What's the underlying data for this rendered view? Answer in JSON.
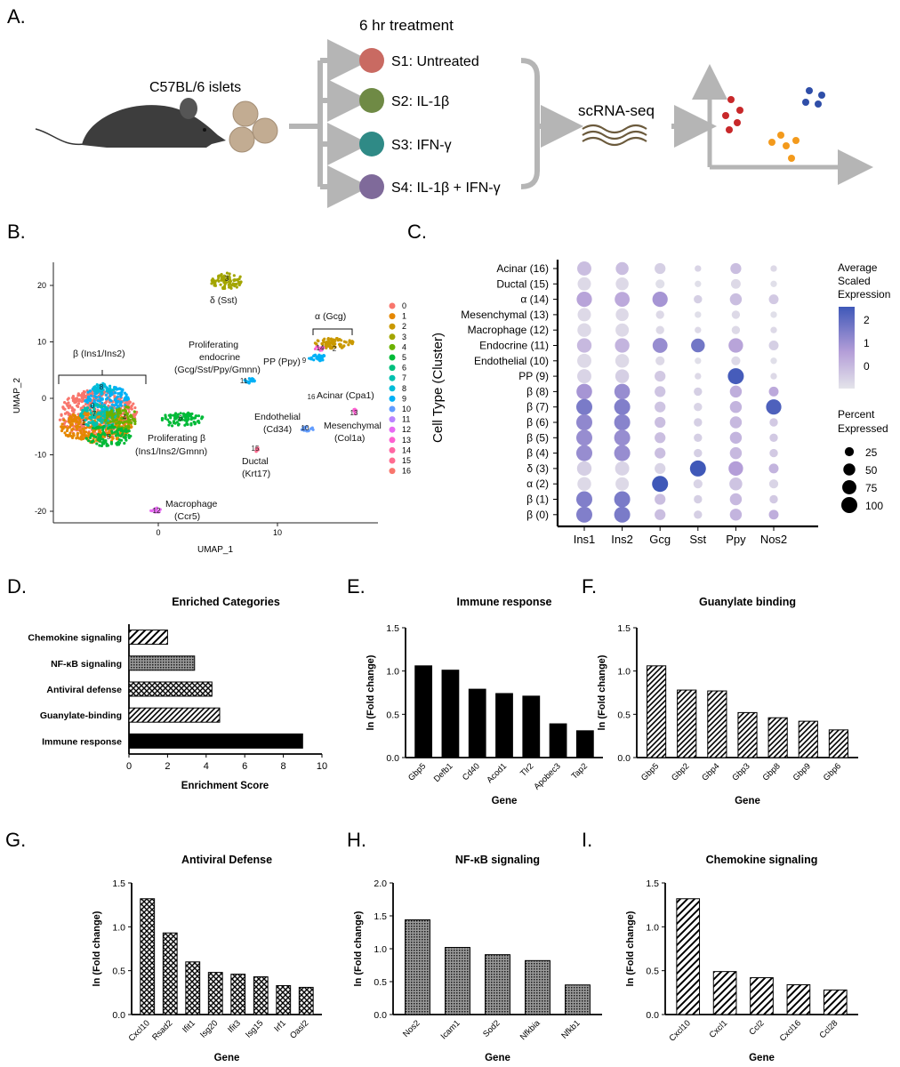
{
  "panelA": {
    "letter": "A.",
    "treatment_title": "6 hr treatment",
    "islets_label": "C57BL/6 islets",
    "samples": [
      {
        "label": "S1: Untreated",
        "color": "#c96a62"
      },
      {
        "label": "S2: IL-1β",
        "color": "#6f8a45"
      },
      {
        "label": "S3: IFN-γ",
        "color": "#2f8a86"
      },
      {
        "label": "S4: IL-1β + IFN-γ",
        "color": "#7f6a9a"
      }
    ],
    "method_label": "scRNA-seq"
  },
  "panelB": {
    "letter": "B.",
    "xlabel": "UMAP_1",
    "ylabel": "UMAP_2",
    "xticks": [
      0,
      10
    ],
    "yticks": [
      20,
      10,
      0,
      -10,
      -20
    ],
    "legend": [
      "0",
      "1",
      "2",
      "3",
      "4",
      "5",
      "6",
      "7",
      "8",
      "9",
      "10",
      "11",
      "12",
      "13",
      "14",
      "15",
      "16"
    ],
    "colors": [
      "#f8766d",
      "#e58700",
      "#c99800",
      "#a3a500",
      "#6bb100",
      "#00ba38",
      "#00bf7d",
      "#00c0af",
      "#00bcd8",
      "#00b0f6",
      "#619cff",
      "#b983ff",
      "#e76bf3",
      "#fd61d1",
      "#ff67a4",
      "#ff6c91",
      "#f8766d"
    ],
    "labels": {
      "delta": "δ (Sst)",
      "alpha": "α (Gcg)",
      "beta": "β (Ins1/Ins2)",
      "prolif_endo_1": "Proliferating",
      "prolif_endo_2": "endocrine",
      "prolif_endo_3": "(Gcg/Sst/Ppy/Gmnn)",
      "pp": "PP (Ppy)",
      "acinar": "Acinar (Cpa1)",
      "endothelial_1": "Endothelial",
      "endothelial_2": "(Cd34)",
      "mesenchymal_1": "Mesenchymal",
      "mesenchymal_2": "(Col1a)",
      "prolif_beta_1": "Proliferating β",
      "prolif_beta_2": "(Ins1/Ins2/Gmnn)",
      "ductal_1": "Ductal",
      "ductal_2": "(Krt17)",
      "macrophage_1": "Macrophage",
      "macrophage_2": "(Ccr5)"
    }
  },
  "panelC": {
    "letter": "C.",
    "ylabel": "Cell Type (Cluster)",
    "legend_title_1": "Average",
    "legend_title_2": "Scaled",
    "legend_title_3": "Expression",
    "legend_ticks": [
      "2",
      "1",
      "0"
    ],
    "pct_title_1": "Percent",
    "pct_title_2": "Expressed",
    "pct_values": [
      "25",
      "50",
      "75",
      "100"
    ]
  },
  "chart_data": [
    {
      "panel": "C",
      "type": "dotplot",
      "genes": [
        "Ins1",
        "Ins2",
        "Gcg",
        "Sst",
        "Ppy",
        "Nos2"
      ],
      "rows": [
        "Acinar (16)",
        "Ductal (15)",
        "α (14)",
        "Mesenchymal (13)",
        "Macrophage (12)",
        "Endocrine (11)",
        "Endothelial (10)",
        "PP (9)",
        "β (8)",
        "β (7)",
        "β (6)",
        "β (5)",
        "β (4)",
        "δ (3)",
        "α (2)",
        "β (1)",
        "β (0)"
      ],
      "expression": [
        [
          0.2,
          0.2,
          -0.1,
          -0.2,
          0.2,
          -0.3
        ],
        [
          -0.3,
          -0.3,
          -0.4,
          -0.4,
          -0.3,
          -0.4
        ],
        [
          0.7,
          0.6,
          1.0,
          -0.1,
          0.2,
          0.0
        ],
        [
          -0.3,
          -0.3,
          -0.3,
          -0.4,
          -0.3,
          -0.4
        ],
        [
          -0.3,
          -0.3,
          -0.3,
          -0.3,
          -0.3,
          -0.3
        ],
        [
          0.3,
          0.4,
          1.2,
          1.7,
          0.7,
          -0.1
        ],
        [
          -0.3,
          -0.3,
          -0.3,
          -0.4,
          -0.3,
          -0.4
        ],
        [
          -0.2,
          -0.1,
          0.0,
          -0.3,
          2.3,
          -0.3
        ],
        [
          1.0,
          1.2,
          0.1,
          -0.1,
          0.5,
          0.6
        ],
        [
          1.6,
          1.5,
          0.1,
          -0.2,
          0.4,
          2.2
        ],
        [
          1.3,
          1.4,
          0.2,
          -0.1,
          0.3,
          0.0
        ],
        [
          1.2,
          1.2,
          0.2,
          -0.1,
          0.4,
          0.0
        ],
        [
          1.2,
          1.2,
          0.2,
          -0.1,
          0.3,
          0.0
        ],
        [
          -0.1,
          -0.2,
          -0.2,
          2.4,
          0.8,
          0.4
        ],
        [
          -0.3,
          -0.3,
          2.4,
          -0.2,
          0.1,
          -0.2
        ],
        [
          1.5,
          1.6,
          0.2,
          -0.1,
          0.3,
          0.0
        ],
        [
          1.5,
          1.6,
          0.2,
          -0.1,
          0.4,
          0.5
        ]
      ],
      "percent": [
        [
          75,
          60,
          40,
          10,
          40,
          10
        ],
        [
          65,
          60,
          25,
          10,
          30,
          10
        ],
        [
          90,
          85,
          90,
          20,
          50,
          30
        ],
        [
          65,
          60,
          20,
          10,
          20,
          10
        ],
        [
          70,
          65,
          20,
          10,
          20,
          10
        ],
        [
          80,
          80,
          85,
          70,
          80,
          30
        ],
        [
          75,
          70,
          25,
          10,
          25,
          10
        ],
        [
          75,
          70,
          40,
          10,
          100,
          10
        ],
        [
          95,
          95,
          40,
          20,
          50,
          30
        ],
        [
          100,
          100,
          40,
          20,
          50,
          90
        ],
        [
          100,
          100,
          40,
          20,
          50,
          20
        ],
        [
          100,
          100,
          40,
          20,
          50,
          20
        ],
        [
          100,
          100,
          40,
          20,
          50,
          20
        ],
        [
          80,
          75,
          40,
          100,
          80,
          30
        ],
        [
          70,
          65,
          100,
          25,
          60,
          25
        ],
        [
          100,
          100,
          40,
          20,
          50,
          20
        ],
        [
          100,
          100,
          40,
          20,
          50,
          30
        ]
      ]
    },
    {
      "panel": "D",
      "letter": "D.",
      "type": "bar",
      "orientation": "horizontal",
      "title": "Enriched Categories",
      "xlabel": "Enrichment Score",
      "ylabel": "",
      "xlim": [
        0,
        10
      ],
      "xticks": [
        "0",
        "2",
        "4",
        "6",
        "8",
        "10"
      ],
      "categories": [
        "Chemokine signaling",
        "NF-κB signaling",
        "Antiviral defense",
        "Guanylate-binding",
        "Immune response"
      ],
      "values": [
        2.0,
        3.4,
        4.3,
        4.7,
        9.0
      ],
      "patterns": [
        "diag-coarse",
        "dots-fine",
        "cross",
        "diag-fine",
        "solid"
      ]
    },
    {
      "panel": "E",
      "letter": "E.",
      "type": "bar",
      "title": "Immune response",
      "xlabel": "Gene",
      "ylabel": "ln (Fold change)",
      "ylim": [
        0,
        1.5
      ],
      "yticks": [
        "0.0",
        "0.5",
        "1.0",
        "1.5"
      ],
      "categories": [
        "Gbp5",
        "Defb1",
        "Cd40",
        "Acod1",
        "Tlr2",
        "Apobec3",
        "Tap2"
      ],
      "values": [
        1.06,
        1.01,
        0.79,
        0.74,
        0.71,
        0.39,
        0.31
      ],
      "pattern": "solid"
    },
    {
      "panel": "F",
      "letter": "F.",
      "type": "bar",
      "title": "Guanylate binding",
      "xlabel": "Gene",
      "ylabel": "ln (Fold change)",
      "ylim": [
        0,
        1.5
      ],
      "yticks": [
        "0.0",
        "0.5",
        "1.0",
        "1.5"
      ],
      "categories": [
        "Gbp5",
        "Gbp2",
        "Gbp4",
        "Gbp3",
        "Gbp8",
        "Gbp9",
        "Gbp6"
      ],
      "values": [
        1.06,
        0.78,
        0.77,
        0.52,
        0.46,
        0.42,
        0.32
      ],
      "pattern": "diag-fine"
    },
    {
      "panel": "G",
      "letter": "G.",
      "type": "bar",
      "title": "Antiviral Defense",
      "xlabel": "Gene",
      "ylabel": "ln (Fold change)",
      "ylim": [
        0,
        1.5
      ],
      "yticks": [
        "0.0",
        "0.5",
        "1.0",
        "1.5"
      ],
      "categories": [
        "Cxcl10",
        "Rsad2",
        "Ifit1",
        "Isg20",
        "Ifit3",
        "Isg15",
        "Irf1",
        "Oasl2"
      ],
      "values": [
        1.32,
        0.93,
        0.6,
        0.48,
        0.46,
        0.43,
        0.33,
        0.31
      ],
      "pattern": "cross"
    },
    {
      "panel": "H",
      "letter": "H.",
      "type": "bar",
      "title": "NF-κB signaling",
      "xlabel": "Gene",
      "ylabel": "ln (Fold change)",
      "ylim": [
        0,
        2.0
      ],
      "yticks": [
        "0.0",
        "0.5",
        "1.0",
        "1.5",
        "2.0"
      ],
      "categories": [
        "Nos2",
        "Icam1",
        "Sod2",
        "Nfkbia",
        "Nfkb1"
      ],
      "values": [
        1.44,
        1.02,
        0.91,
        0.82,
        0.45
      ],
      "pattern": "dots-fine"
    },
    {
      "panel": "I",
      "letter": "I.",
      "type": "bar",
      "title": "Chemokine signaling",
      "xlabel": "Gene",
      "ylabel": "ln (Fold change)",
      "ylim": [
        0,
        1.5
      ],
      "yticks": [
        "0.0",
        "0.5",
        "1.0",
        "1.5"
      ],
      "categories": [
        "Cxcl10",
        "Cxcl1",
        "Ccl2",
        "Cxcl16",
        "Ccl28"
      ],
      "values": [
        1.32,
        0.49,
        0.42,
        0.34,
        0.28
      ],
      "pattern": "diag-coarse"
    }
  ]
}
